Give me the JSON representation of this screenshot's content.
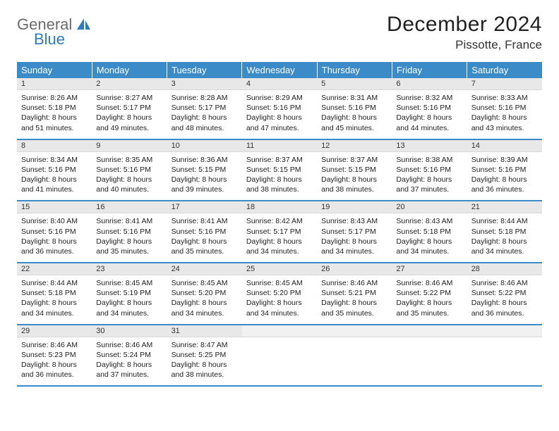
{
  "logo": {
    "text_top": "General",
    "text_bottom": "Blue",
    "color_top": "#6b6b6b",
    "color_bottom": "#2d7bc0",
    "icon_color": "#2d7bc0"
  },
  "title": "December 2024",
  "location": "Pissotte, France",
  "colors": {
    "header_bg": "#3b8bc9",
    "header_text": "#ffffff",
    "daynum_bg": "#e8e8e8",
    "row_border": "#3b8bc9",
    "body_text": "#222222"
  },
  "typography": {
    "title_fontsize": 30,
    "location_fontsize": 17,
    "header_fontsize": 13,
    "cell_fontsize": 10.5
  },
  "day_headers": [
    "Sunday",
    "Monday",
    "Tuesday",
    "Wednesday",
    "Thursday",
    "Friday",
    "Saturday"
  ],
  "weeks": [
    [
      {
        "num": "1",
        "sunrise": "Sunrise: 8:26 AM",
        "sunset": "Sunset: 5:18 PM",
        "daylight": "Daylight: 8 hours and 51 minutes."
      },
      {
        "num": "2",
        "sunrise": "Sunrise: 8:27 AM",
        "sunset": "Sunset: 5:17 PM",
        "daylight": "Daylight: 8 hours and 49 minutes."
      },
      {
        "num": "3",
        "sunrise": "Sunrise: 8:28 AM",
        "sunset": "Sunset: 5:17 PM",
        "daylight": "Daylight: 8 hours and 48 minutes."
      },
      {
        "num": "4",
        "sunrise": "Sunrise: 8:29 AM",
        "sunset": "Sunset: 5:16 PM",
        "daylight": "Daylight: 8 hours and 47 minutes."
      },
      {
        "num": "5",
        "sunrise": "Sunrise: 8:31 AM",
        "sunset": "Sunset: 5:16 PM",
        "daylight": "Daylight: 8 hours and 45 minutes."
      },
      {
        "num": "6",
        "sunrise": "Sunrise: 8:32 AM",
        "sunset": "Sunset: 5:16 PM",
        "daylight": "Daylight: 8 hours and 44 minutes."
      },
      {
        "num": "7",
        "sunrise": "Sunrise: 8:33 AM",
        "sunset": "Sunset: 5:16 PM",
        "daylight": "Daylight: 8 hours and 43 minutes."
      }
    ],
    [
      {
        "num": "8",
        "sunrise": "Sunrise: 8:34 AM",
        "sunset": "Sunset: 5:16 PM",
        "daylight": "Daylight: 8 hours and 41 minutes."
      },
      {
        "num": "9",
        "sunrise": "Sunrise: 8:35 AM",
        "sunset": "Sunset: 5:16 PM",
        "daylight": "Daylight: 8 hours and 40 minutes."
      },
      {
        "num": "10",
        "sunrise": "Sunrise: 8:36 AM",
        "sunset": "Sunset: 5:15 PM",
        "daylight": "Daylight: 8 hours and 39 minutes."
      },
      {
        "num": "11",
        "sunrise": "Sunrise: 8:37 AM",
        "sunset": "Sunset: 5:15 PM",
        "daylight": "Daylight: 8 hours and 38 minutes."
      },
      {
        "num": "12",
        "sunrise": "Sunrise: 8:37 AM",
        "sunset": "Sunset: 5:15 PM",
        "daylight": "Daylight: 8 hours and 38 minutes."
      },
      {
        "num": "13",
        "sunrise": "Sunrise: 8:38 AM",
        "sunset": "Sunset: 5:16 PM",
        "daylight": "Daylight: 8 hours and 37 minutes."
      },
      {
        "num": "14",
        "sunrise": "Sunrise: 8:39 AM",
        "sunset": "Sunset: 5:16 PM",
        "daylight": "Daylight: 8 hours and 36 minutes."
      }
    ],
    [
      {
        "num": "15",
        "sunrise": "Sunrise: 8:40 AM",
        "sunset": "Sunset: 5:16 PM",
        "daylight": "Daylight: 8 hours and 36 minutes."
      },
      {
        "num": "16",
        "sunrise": "Sunrise: 8:41 AM",
        "sunset": "Sunset: 5:16 PM",
        "daylight": "Daylight: 8 hours and 35 minutes."
      },
      {
        "num": "17",
        "sunrise": "Sunrise: 8:41 AM",
        "sunset": "Sunset: 5:16 PM",
        "daylight": "Daylight: 8 hours and 35 minutes."
      },
      {
        "num": "18",
        "sunrise": "Sunrise: 8:42 AM",
        "sunset": "Sunset: 5:17 PM",
        "daylight": "Daylight: 8 hours and 34 minutes."
      },
      {
        "num": "19",
        "sunrise": "Sunrise: 8:43 AM",
        "sunset": "Sunset: 5:17 PM",
        "daylight": "Daylight: 8 hours and 34 minutes."
      },
      {
        "num": "20",
        "sunrise": "Sunrise: 8:43 AM",
        "sunset": "Sunset: 5:18 PM",
        "daylight": "Daylight: 8 hours and 34 minutes."
      },
      {
        "num": "21",
        "sunrise": "Sunrise: 8:44 AM",
        "sunset": "Sunset: 5:18 PM",
        "daylight": "Daylight: 8 hours and 34 minutes."
      }
    ],
    [
      {
        "num": "22",
        "sunrise": "Sunrise: 8:44 AM",
        "sunset": "Sunset: 5:18 PM",
        "daylight": "Daylight: 8 hours and 34 minutes."
      },
      {
        "num": "23",
        "sunrise": "Sunrise: 8:45 AM",
        "sunset": "Sunset: 5:19 PM",
        "daylight": "Daylight: 8 hours and 34 minutes."
      },
      {
        "num": "24",
        "sunrise": "Sunrise: 8:45 AM",
        "sunset": "Sunset: 5:20 PM",
        "daylight": "Daylight: 8 hours and 34 minutes."
      },
      {
        "num": "25",
        "sunrise": "Sunrise: 8:45 AM",
        "sunset": "Sunset: 5:20 PM",
        "daylight": "Daylight: 8 hours and 34 minutes."
      },
      {
        "num": "26",
        "sunrise": "Sunrise: 8:46 AM",
        "sunset": "Sunset: 5:21 PM",
        "daylight": "Daylight: 8 hours and 35 minutes."
      },
      {
        "num": "27",
        "sunrise": "Sunrise: 8:46 AM",
        "sunset": "Sunset: 5:22 PM",
        "daylight": "Daylight: 8 hours and 35 minutes."
      },
      {
        "num": "28",
        "sunrise": "Sunrise: 8:46 AM",
        "sunset": "Sunset: 5:22 PM",
        "daylight": "Daylight: 8 hours and 36 minutes."
      }
    ],
    [
      {
        "num": "29",
        "sunrise": "Sunrise: 8:46 AM",
        "sunset": "Sunset: 5:23 PM",
        "daylight": "Daylight: 8 hours and 36 minutes."
      },
      {
        "num": "30",
        "sunrise": "Sunrise: 8:46 AM",
        "sunset": "Sunset: 5:24 PM",
        "daylight": "Daylight: 8 hours and 37 minutes."
      },
      {
        "num": "31",
        "sunrise": "Sunrise: 8:47 AM",
        "sunset": "Sunset: 5:25 PM",
        "daylight": "Daylight: 8 hours and 38 minutes."
      },
      {
        "empty": true
      },
      {
        "empty": true
      },
      {
        "empty": true
      },
      {
        "empty": true
      }
    ]
  ]
}
